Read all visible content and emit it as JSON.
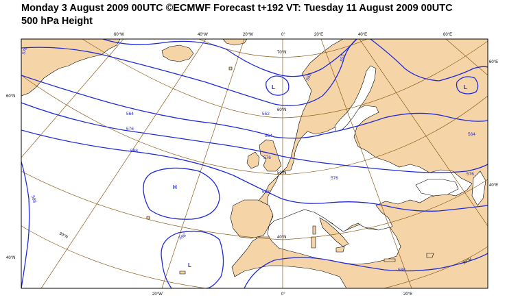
{
  "header": {
    "line1": "Monday 3 August 2009 00UTC ©ECMWF Forecast t+192 VT: Tuesday 11 August 2009 00UTC",
    "line2": "500 hPa Height"
  },
  "colors": {
    "land": "#f5d5a8",
    "sea": "#ffffff",
    "contour": "#1f2ad8",
    "graticule": "#8b5a16",
    "coast": "#000000"
  },
  "map": {
    "lon_labels_top": [
      "60°W",
      "40°W",
      "20°W",
      "0°",
      "20°E",
      "40°E",
      "60°E"
    ],
    "lon_labels_bottom": [
      "20°W",
      "0°",
      "20°E"
    ],
    "lat_labels_left": [
      "60°N",
      "40°N"
    ],
    "lat_labels_right": [
      "60°E",
      "40°E"
    ],
    "lat_labels_inner": [
      "70°N",
      "60°N",
      "50°N",
      "40°N",
      "30°N",
      "30°N"
    ],
    "contour_labels": [
      "576",
      "564",
      "576",
      "588",
      "588",
      "588",
      "552",
      "552",
      "564",
      "576",
      "576",
      "588",
      "564",
      "576",
      "552",
      "588"
    ],
    "pressure_centers": [
      "L",
      "H",
      "L",
      "L"
    ]
  }
}
